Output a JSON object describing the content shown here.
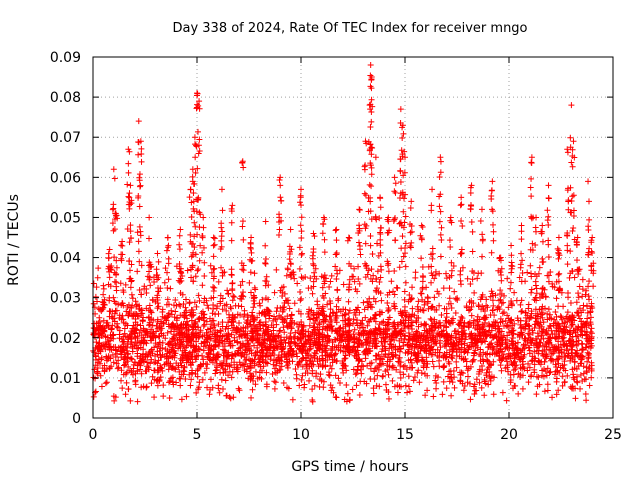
{
  "chart_data": {
    "type": "scatter",
    "title": "Day 338 of 2024, Rate Of TEC Index for receiver mngo",
    "xlabel": "GPS time / hours",
    "ylabel": "ROTI / TECUs",
    "xlim": [
      0,
      25
    ],
    "ylim": [
      0,
      0.09
    ],
    "xticks": [
      0,
      5,
      10,
      15,
      20,
      25
    ],
    "yticks": [
      0,
      0.01,
      0.02,
      0.03,
      0.04,
      0.05,
      0.06,
      0.07,
      0.08,
      0.09
    ],
    "xtick_labels": [
      "0",
      "5",
      "10",
      "15",
      "20",
      "25"
    ],
    "ytick_labels": [
      "0",
      "0.01",
      "0.02",
      "0.03",
      "0.04",
      "0.05",
      "0.06",
      "0.07",
      "0.08",
      "0.09"
    ],
    "grid": true,
    "marker": "+",
    "series": [
      {
        "name": "ROTI",
        "color": "#ff0000",
        "x_range": [
          0,
          24
        ],
        "bulk_range": [
          0.005,
          0.03
        ],
        "peaks": [
          {
            "x": 0.3,
            "y": 0.025
          },
          {
            "x": 0.5,
            "y": 0.033
          },
          {
            "x": 0.8,
            "y": 0.042
          },
          {
            "x": 1.0,
            "y": 0.062
          },
          {
            "x": 1.1,
            "y": 0.051
          },
          {
            "x": 1.4,
            "y": 0.044
          },
          {
            "x": 1.7,
            "y": 0.067
          },
          {
            "x": 1.8,
            "y": 0.058
          },
          {
            "x": 2.2,
            "y": 0.074
          },
          {
            "x": 2.3,
            "y": 0.069
          },
          {
            "x": 2.7,
            "y": 0.05
          },
          {
            "x": 3.1,
            "y": 0.041
          },
          {
            "x": 3.6,
            "y": 0.045
          },
          {
            "x": 4.2,
            "y": 0.047
          },
          {
            "x": 4.7,
            "y": 0.057
          },
          {
            "x": 4.8,
            "y": 0.062
          },
          {
            "x": 4.9,
            "y": 0.07
          },
          {
            "x": 5.0,
            "y": 0.081
          },
          {
            "x": 5.1,
            "y": 0.079
          },
          {
            "x": 5.3,
            "y": 0.05
          },
          {
            "x": 5.8,
            "y": 0.045
          },
          {
            "x": 6.2,
            "y": 0.057
          },
          {
            "x": 6.7,
            "y": 0.053
          },
          {
            "x": 7.2,
            "y": 0.064
          },
          {
            "x": 7.6,
            "y": 0.045
          },
          {
            "x": 8.3,
            "y": 0.049
          },
          {
            "x": 9.0,
            "y": 0.06
          },
          {
            "x": 9.5,
            "y": 0.047
          },
          {
            "x": 10.0,
            "y": 0.057
          },
          {
            "x": 10.6,
            "y": 0.046
          },
          {
            "x": 11.1,
            "y": 0.05
          },
          {
            "x": 11.7,
            "y": 0.047
          },
          {
            "x": 12.3,
            "y": 0.045
          },
          {
            "x": 12.8,
            "y": 0.052
          },
          {
            "x": 13.1,
            "y": 0.069
          },
          {
            "x": 13.3,
            "y": 0.078
          },
          {
            "x": 13.35,
            "y": 0.088
          },
          {
            "x": 13.4,
            "y": 0.085
          },
          {
            "x": 13.6,
            "y": 0.065
          },
          {
            "x": 13.8,
            "y": 0.055
          },
          {
            "x": 14.2,
            "y": 0.05
          },
          {
            "x": 14.5,
            "y": 0.06
          },
          {
            "x": 14.8,
            "y": 0.077
          },
          {
            "x": 14.9,
            "y": 0.073
          },
          {
            "x": 15.0,
            "y": 0.065
          },
          {
            "x": 15.3,
            "y": 0.054
          },
          {
            "x": 15.8,
            "y": 0.048
          },
          {
            "x": 16.3,
            "y": 0.057
          },
          {
            "x": 16.7,
            "y": 0.065
          },
          {
            "x": 17.2,
            "y": 0.05
          },
          {
            "x": 17.7,
            "y": 0.055
          },
          {
            "x": 18.2,
            "y": 0.058
          },
          {
            "x": 18.7,
            "y": 0.052
          },
          {
            "x": 19.2,
            "y": 0.059
          },
          {
            "x": 19.6,
            "y": 0.04
          },
          {
            "x": 20.1,
            "y": 0.043
          },
          {
            "x": 20.6,
            "y": 0.048
          },
          {
            "x": 21.1,
            "y": 0.065
          },
          {
            "x": 21.3,
            "y": 0.05
          },
          {
            "x": 21.6,
            "y": 0.048
          },
          {
            "x": 21.9,
            "y": 0.058
          },
          {
            "x": 22.4,
            "y": 0.045
          },
          {
            "x": 22.8,
            "y": 0.067
          },
          {
            "x": 23.0,
            "y": 0.078
          },
          {
            "x": 23.1,
            "y": 0.069
          },
          {
            "x": 23.3,
            "y": 0.045
          },
          {
            "x": 23.8,
            "y": 0.059
          },
          {
            "x": 24.0,
            "y": 0.045
          }
        ]
      }
    ]
  }
}
